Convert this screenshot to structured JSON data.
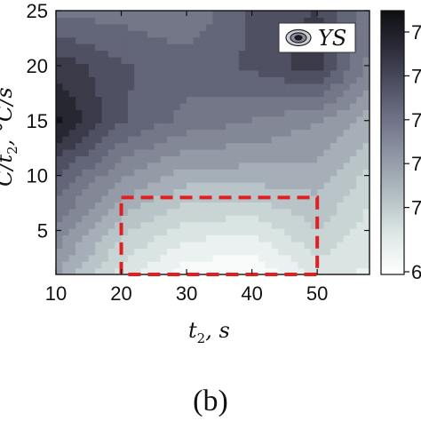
{
  "chart_data": {
    "type": "heatmap",
    "subtype": "filled-contour",
    "x": [
      10,
      20,
      30,
      40,
      50,
      58
    ],
    "y": [
      1,
      5,
      10,
      15,
      20,
      25
    ],
    "z": [
      [
        73.0,
        70.6,
        69.2,
        69.0,
        70.5,
        70.2
      ],
      [
        74.0,
        71.8,
        70.6,
        70.4,
        71.6,
        70.6
      ],
      [
        75.6,
        73.6,
        72.6,
        72.6,
        72.6,
        71.4
      ],
      [
        77.6,
        75.6,
        74.6,
        74.2,
        73.6,
        72.6
      ],
      [
        76.6,
        75.6,
        75.2,
        75.6,
        76.6,
        74.0
      ],
      [
        74.6,
        74.6,
        74.2,
        75.6,
        76.2,
        74.4
      ]
    ],
    "xlabel_main": "t",
    "xlabel_sub": "2",
    "xlabel_unit": ", s",
    "ylabel_partial": "C/t",
    "ylabel_sub": "2",
    "ylabel_unit": ", °C/s",
    "xticks": [
      "10",
      "20",
      "30",
      "40",
      "50"
    ],
    "yticks": [
      "5",
      "10",
      "15",
      "20",
      "25"
    ],
    "xlim": [
      10,
      58
    ],
    "ylim": [
      1,
      25
    ],
    "legend_label": "YS",
    "legend_position": "top-right",
    "colorbar_ticks": [
      "7",
      "7",
      "7",
      "7",
      "7",
      "6"
    ],
    "colors": {
      "low": "#f7faf9",
      "mid": "#bccbcb",
      "high": "#121218",
      "box": "#e02020"
    },
    "highlight_box": {
      "x": [
        20,
        50
      ],
      "y": [
        1,
        8
      ]
    },
    "caption": "(b)"
  }
}
